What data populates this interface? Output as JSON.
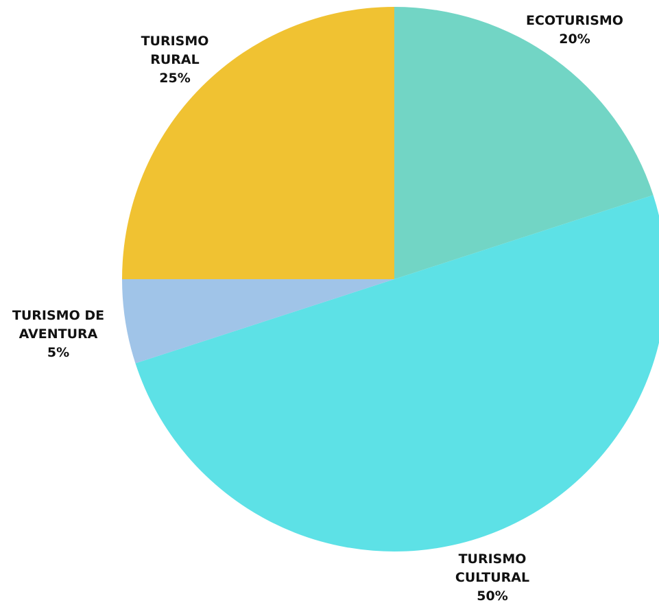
{
  "chart_data": {
    "type": "pie",
    "categories": [
      "ECOTURISMO",
      "TURISMO CULTURAL",
      "TURISMO DE AVENTURA",
      "TURISMO RURAL"
    ],
    "values": [
      20,
      50,
      5,
      25
    ],
    "value_labels": [
      "20%",
      "50%",
      "5%",
      "25%"
    ],
    "colors": [
      "#72d5c5",
      "#5de1e6",
      "#a0c4e8",
      "#f0c232"
    ]
  }
}
